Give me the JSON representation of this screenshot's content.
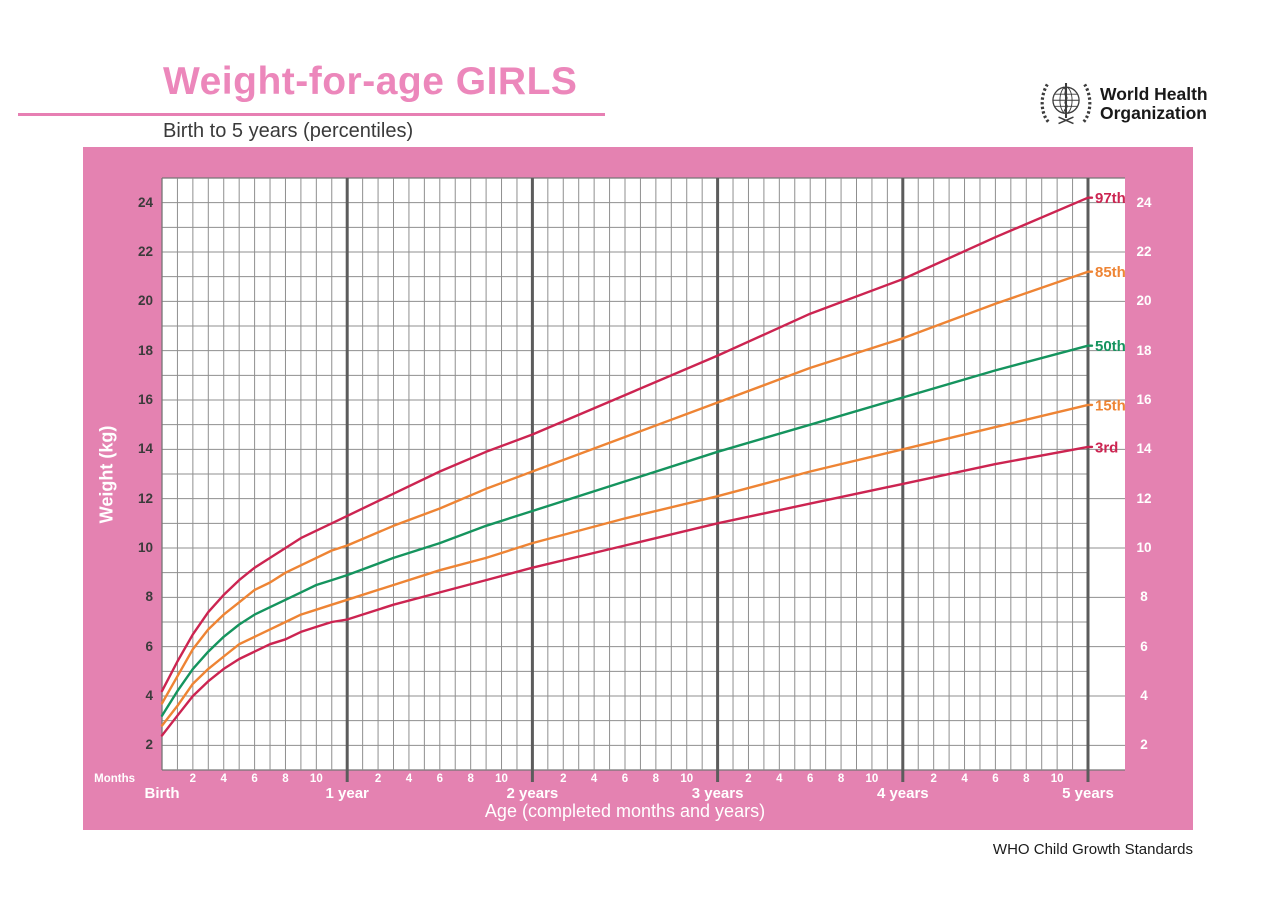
{
  "header": {
    "title": "Weight-for-age GIRLS",
    "subtitle": "Birth to 5 years (percentiles)",
    "logo_line1": "World Health",
    "logo_line2": "Organization"
  },
  "footer": "WHO Child Growth Standards",
  "chart_data": {
    "type": "line",
    "title": "Weight-for-age GIRLS",
    "subtitle": "Birth to 5 years (percentiles)",
    "xlabel": "Age (completed months and years)",
    "ylabel": "Weight (kg)",
    "months_axis_caption": "Months",
    "xlim_months": [
      0,
      60
    ],
    "ylim": [
      1,
      25
    ],
    "grid": "on",
    "y_ticks_labeled": [
      2,
      4,
      6,
      8,
      10,
      12,
      14,
      16,
      18,
      20,
      22,
      24
    ],
    "y_minor_step_kg": 1,
    "x_minor_step_months": 1,
    "x_year_ticks": [
      {
        "month": 0,
        "label": "Birth"
      },
      {
        "month": 12,
        "label": "1 year"
      },
      {
        "month": 24,
        "label": "2 years"
      },
      {
        "month": 36,
        "label": "3 years"
      },
      {
        "month": 48,
        "label": "4 years"
      },
      {
        "month": 60,
        "label": "5 years"
      }
    ],
    "x_month_tick_offsets_per_year": [
      2,
      4,
      6,
      8,
      10
    ],
    "legend_position": "labels-at-right-edge",
    "x_months": [
      0,
      1,
      2,
      3,
      4,
      5,
      6,
      7,
      8,
      9,
      10,
      11,
      12,
      15,
      18,
      21,
      24,
      30,
      36,
      42,
      48,
      54,
      60
    ],
    "series": [
      {
        "name": "97th",
        "color": "#cc2451",
        "values": [
          4.2,
          5.4,
          6.5,
          7.4,
          8.1,
          8.7,
          9.2,
          9.6,
          10.0,
          10.4,
          10.7,
          11.0,
          11.3,
          12.2,
          13.1,
          13.9,
          14.6,
          16.2,
          17.8,
          19.5,
          20.9,
          22.6,
          24.2
        ]
      },
      {
        "name": "85th",
        "color": "#ee8434",
        "values": [
          3.7,
          4.8,
          5.9,
          6.7,
          7.3,
          7.8,
          8.3,
          8.6,
          9.0,
          9.3,
          9.6,
          9.9,
          10.1,
          10.9,
          11.6,
          12.4,
          13.1,
          14.5,
          15.9,
          17.3,
          18.5,
          19.9,
          21.2
        ]
      },
      {
        "name": "50th",
        "color": "#15945e",
        "values": [
          3.2,
          4.2,
          5.1,
          5.8,
          6.4,
          6.9,
          7.3,
          7.6,
          7.9,
          8.2,
          8.5,
          8.7,
          8.9,
          9.6,
          10.2,
          10.9,
          11.5,
          12.7,
          13.9,
          15.0,
          16.1,
          17.2,
          18.2
        ]
      },
      {
        "name": "15th",
        "color": "#ee8434",
        "values": [
          2.8,
          3.6,
          4.5,
          5.1,
          5.6,
          6.1,
          6.4,
          6.7,
          7.0,
          7.3,
          7.5,
          7.7,
          7.9,
          8.5,
          9.1,
          9.6,
          10.2,
          11.2,
          12.1,
          13.1,
          14.0,
          14.9,
          15.8
        ]
      },
      {
        "name": "3rd",
        "color": "#cc2451",
        "values": [
          2.4,
          3.2,
          4.0,
          4.6,
          5.1,
          5.5,
          5.8,
          6.1,
          6.3,
          6.6,
          6.8,
          7.0,
          7.1,
          7.7,
          8.2,
          8.7,
          9.2,
          10.1,
          11.0,
          11.8,
          12.6,
          13.4,
          14.1
        ]
      }
    ],
    "colors": {
      "panel_pink": "#e482b1",
      "title_pink": "#ec87bb",
      "rule_pink": "#e77fb3",
      "grid_minor": "#8f8f8f",
      "grid_border": "#767676",
      "grid_year_line": "#5c5c5c",
      "red_percentile": "#cc2451",
      "orange_percentile": "#ee8434",
      "green_percentile": "#15945e",
      "axis_text_dark": "#3b3b3b",
      "axis_text_light": "#ffffff"
    }
  }
}
